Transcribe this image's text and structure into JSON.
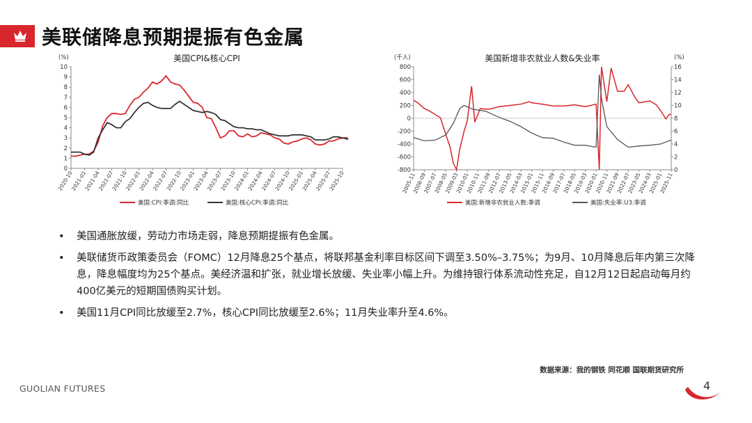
{
  "header": {
    "title": "美联储降息预期提振有色金属"
  },
  "bullets": [
    {
      "marker": "•",
      "text": "美国通胀放缓，劳动力市场走弱，降息预期提振有色金属。"
    },
    {
      "marker": "•",
      "text": "美联储货币政策委员会（FOMC）12月降息25个基点，将联邦基金利率目标区间下调至3.50%–3.75%；为9月、10月降息后年内第三次降息，降息幅度均为25个基点。美经济温和扩张，就业增长放缓、失业率小幅上升。为维持银行体系流动性充足，自12月12日起启动每月约400亿美元的短期国债购买计划。"
    },
    {
      "marker": "•",
      "text": "美国11月CPI同比放缓至2.7%，核心CPI同比放缓至2.6%；11月失业率升至4.6%。"
    }
  ],
  "source": "数据来源：我的钢铁  同花顺  国联期货研究所",
  "footer": {
    "brand": "GUOLIAN FUTURES",
    "page": "4"
  },
  "colors": {
    "accent": "#d7262c",
    "series_red": "#d7262c",
    "series_dark": "#333333"
  },
  "chart_data": [
    {
      "type": "line",
      "title": "美国CPI&核心CPI",
      "ylabel": "(%)",
      "ylim": [
        0,
        10
      ],
      "yticks": [
        0,
        1,
        2,
        3,
        4,
        5,
        6,
        7,
        8,
        9,
        10
      ],
      "xticks": [
        "2020-10",
        "2021-01",
        "2021-04",
        "2021-07",
        "2021-10",
        "2022-01",
        "2022-04",
        "2022-07",
        "2022-10",
        "2023-01",
        "2023-04",
        "2023-07",
        "2023-10",
        "2024-01",
        "2024-04",
        "2024-07",
        "2024-10",
        "2025-01",
        "2025-04",
        "2025-07",
        "2025-10"
      ],
      "x_start": "2020-10",
      "legend_position": "bottom",
      "series": [
        {
          "name": "美国:CPI:季调:同比",
          "color": "#d7262c",
          "values": [
            1.2,
            1.2,
            1.3,
            1.4,
            1.4,
            1.7,
            2.6,
            4.2,
            5.0,
            5.4,
            5.4,
            5.3,
            5.4,
            6.2,
            6.8,
            7.0,
            7.5,
            7.9,
            8.5,
            8.3,
            8.6,
            9.1,
            8.5,
            8.3,
            8.2,
            7.7,
            7.1,
            6.5,
            6.4,
            6.0,
            5.0,
            4.9,
            4.0,
            3.0,
            3.2,
            3.7,
            3.7,
            3.2,
            3.1,
            3.4,
            3.1,
            3.2,
            3.5,
            3.4,
            3.3,
            3.0,
            2.9,
            2.5,
            2.4,
            2.6,
            2.7,
            2.9,
            3.0,
            2.8,
            2.4,
            2.3,
            2.4,
            2.7,
            2.7,
            2.9,
            3.0,
            3.0,
            2.8,
            2.7
          ]
        },
        {
          "name": "美国:核心CPI:季调:同比",
          "color": "#333333",
          "values": [
            1.6,
            1.6,
            1.6,
            1.4,
            1.3,
            1.6,
            3.0,
            3.8,
            4.5,
            4.3,
            4.0,
            4.0,
            4.6,
            4.9,
            5.5,
            6.0,
            6.4,
            6.5,
            6.2,
            6.0,
            5.9,
            5.9,
            5.9,
            6.3,
            6.6,
            6.3,
            6.0,
            5.7,
            5.6,
            5.5,
            5.6,
            5.5,
            5.3,
            4.8,
            4.7,
            4.4,
            4.1,
            4.0,
            4.0,
            3.9,
            3.9,
            3.8,
            3.8,
            3.6,
            3.4,
            3.3,
            3.2,
            3.2,
            3.2,
            3.3,
            3.3,
            3.3,
            3.2,
            3.1,
            2.8,
            2.8,
            2.8,
            2.9,
            3.1,
            3.1,
            3.0,
            2.9,
            2.8,
            2.6
          ]
        }
      ]
    },
    {
      "type": "line",
      "title": "美国新增非农就业人数&失业率",
      "ylabel_left": "(千人)",
      "ylabel_right": "(%)",
      "ylim_left": [
        -800,
        800
      ],
      "ylim_right": [
        0,
        16
      ],
      "yticks_left": [
        -800,
        -600,
        -400,
        -200,
        0,
        200,
        400,
        600,
        800
      ],
      "yticks_right": [
        0,
        2,
        4,
        6,
        8,
        10,
        12,
        14,
        16
      ],
      "xticks": [
        "2005-11",
        "2006-09",
        "2007-07",
        "2008-05",
        "2009-03",
        "2010-01",
        "2010-11",
        "2011-09",
        "2012-07",
        "2013-05",
        "2014-03",
        "2015-01",
        "2015-11",
        "2016-09",
        "2017-07",
        "2018-05",
        "2019-03",
        "2020-01",
        "2020-11",
        "2021-09",
        "2022-07",
        "2023-05",
        "2024-03",
        "2025-01",
        "2025-11"
      ],
      "legend_position": "bottom",
      "series": [
        {
          "name": "美国:新增非农就业人数:季调",
          "color": "#d7262c",
          "axis": "left",
          "points": [
            [
              "2005-11",
              280
            ],
            [
              "2006-03",
              240
            ],
            [
              "2006-09",
              150
            ],
            [
              "2007-01",
              120
            ],
            [
              "2007-07",
              60
            ],
            [
              "2007-12",
              10
            ],
            [
              "2008-04",
              -200
            ],
            [
              "2008-09",
              -450
            ],
            [
              "2008-12",
              -700
            ],
            [
              "2009-03",
              -800
            ],
            [
              "2009-06",
              -480
            ],
            [
              "2009-10",
              -200
            ],
            [
              "2010-01",
              -40
            ],
            [
              "2010-05",
              500
            ],
            [
              "2010-08",
              -60
            ],
            [
              "2011-01",
              150
            ],
            [
              "2011-09",
              140
            ],
            [
              "2012-07",
              180
            ],
            [
              "2013-05",
              200
            ],
            [
              "2014-03",
              220
            ],
            [
              "2014-11",
              260
            ],
            [
              "2015-01",
              240
            ],
            [
              "2015-11",
              220
            ],
            [
              "2016-09",
              190
            ],
            [
              "2017-07",
              190
            ],
            [
              "2018-05",
              210
            ],
            [
              "2019-03",
              180
            ],
            [
              "2020-01",
              220
            ],
            [
              "2020-04",
              -800
            ],
            [
              "2020-06",
              800
            ],
            [
              "2020-11",
              260
            ],
            [
              "2021-03",
              780
            ],
            [
              "2021-09",
              420
            ],
            [
              "2022-03",
              420
            ],
            [
              "2022-07",
              520
            ],
            [
              "2023-01",
              330
            ],
            [
              "2023-05",
              240
            ],
            [
              "2024-03",
              270
            ],
            [
              "2024-09",
              210
            ],
            [
              "2025-01",
              120
            ],
            [
              "2025-06",
              -10
            ],
            [
              "2025-09",
              60
            ],
            [
              "2025-11",
              60
            ]
          ]
        },
        {
          "name": "美国:失业率:U3:季调",
          "color": "#555555",
          "axis": "right",
          "points": [
            [
              "2005-11",
              5.0
            ],
            [
              "2006-09",
              4.5
            ],
            [
              "2007-07",
              4.6
            ],
            [
              "2008-05",
              5.4
            ],
            [
              "2008-12",
              7.2
            ],
            [
              "2009-06",
              9.5
            ],
            [
              "2009-10",
              10.0
            ],
            [
              "2010-06",
              9.4
            ],
            [
              "2011-06",
              9.1
            ],
            [
              "2012-06",
              8.2
            ],
            [
              "2013-05",
              7.5
            ],
            [
              "2014-03",
              6.7
            ],
            [
              "2015-01",
              5.7
            ],
            [
              "2015-11",
              5.0
            ],
            [
              "2016-09",
              4.9
            ],
            [
              "2017-07",
              4.3
            ],
            [
              "2018-05",
              3.8
            ],
            [
              "2019-03",
              3.8
            ],
            [
              "2020-01",
              3.5
            ],
            [
              "2020-04",
              14.8
            ],
            [
              "2020-06",
              11.1
            ],
            [
              "2020-11",
              6.7
            ],
            [
              "2021-09",
              4.7
            ],
            [
              "2022-07",
              3.5
            ],
            [
              "2023-05",
              3.7
            ],
            [
              "2024-03",
              3.8
            ],
            [
              "2025-01",
              4.0
            ],
            [
              "2025-11",
              4.6
            ]
          ]
        }
      ]
    }
  ]
}
